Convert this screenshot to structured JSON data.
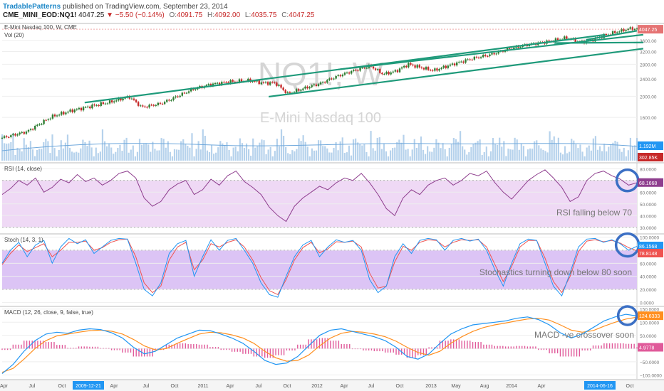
{
  "header": {
    "brand": "TradablePatterns",
    "published": "published on TradingView.com, September 23, 2014",
    "symbol": "CME_MINI_EOD:NQ1!",
    "last": "4047.25",
    "change": "▼ −5.50 (−0.14%)",
    "o_label": "O:",
    "o": "4091.75",
    "h_label": "H:",
    "h": "4092.00",
    "l_label": "L:",
    "l": "4035.75",
    "c_label": "C:",
    "c": "4047.25"
  },
  "colors": {
    "price_up": "#2e7d32",
    "price_down": "#c62828",
    "trendline": "#1e9a7a",
    "rsi_line": "#8e3e8e",
    "rsi_band": "#efd9f5",
    "stoch_k": "#2196f3",
    "stoch_d": "#ef5350",
    "stoch_band": "#dcc4f5",
    "macd_line": "#2196f3",
    "signal_line": "#ff8f1f",
    "hist": "#e05a9a",
    "circle": "#3b6fc4",
    "volume": "#9dc3e6"
  },
  "chart_data": [
    {
      "type": "candlestick",
      "title": "E-Mini Nasdaq 100, W, CME",
      "watermark_symbol": "NQ1!, W",
      "watermark_name": "E-Mini Nasdaq 100",
      "y_ticks": [
        "3600.00",
        "3200.00",
        "2800.00",
        "2400.00",
        "2000.00",
        "1600.00"
      ],
      "y_tick_values": [
        3600,
        3200,
        2800,
        2400,
        2000,
        1600
      ],
      "ylim": [
        1000,
        4300
      ],
      "last_price_label": "4047.25",
      "x_ticks": [
        "Apr",
        "Jul",
        "Oct",
        "2009-12-21",
        "Apr",
        "Jul",
        "Oct",
        "2011",
        "Apr",
        "Jul",
        "Oct",
        "2012",
        "Apr",
        "Jul",
        "Oct",
        "2013",
        "May",
        "Aug",
        "2014",
        "Apr",
        "2014-06-16",
        "Oct"
      ],
      "x_range": [
        "2009-04",
        "2014-10"
      ],
      "close_path": [
        {
          "x": 0.0,
          "y": 1290
        },
        {
          "x": 0.04,
          "y": 1380
        },
        {
          "x": 0.08,
          "y": 1620
        },
        {
          "x": 0.11,
          "y": 1720
        },
        {
          "x": 0.14,
          "y": 1800
        },
        {
          "x": 0.17,
          "y": 1880
        },
        {
          "x": 0.2,
          "y": 1990
        },
        {
          "x": 0.22,
          "y": 1780
        },
        {
          "x": 0.25,
          "y": 1850
        },
        {
          "x": 0.27,
          "y": 1960
        },
        {
          "x": 0.3,
          "y": 2150
        },
        {
          "x": 0.33,
          "y": 2270
        },
        {
          "x": 0.36,
          "y": 2330
        },
        {
          "x": 0.39,
          "y": 2360
        },
        {
          "x": 0.41,
          "y": 2300
        },
        {
          "x": 0.43,
          "y": 2300
        },
        {
          "x": 0.45,
          "y": 2050
        },
        {
          "x": 0.47,
          "y": 2150
        },
        {
          "x": 0.5,
          "y": 2280
        },
        {
          "x": 0.53,
          "y": 2480
        },
        {
          "x": 0.56,
          "y": 2650
        },
        {
          "x": 0.58,
          "y": 2750
        },
        {
          "x": 0.6,
          "y": 2520
        },
        {
          "x": 0.62,
          "y": 2600
        },
        {
          "x": 0.64,
          "y": 2800
        },
        {
          "x": 0.66,
          "y": 2700
        },
        {
          "x": 0.68,
          "y": 2620
        },
        {
          "x": 0.71,
          "y": 2800
        },
        {
          "x": 0.74,
          "y": 2970
        },
        {
          "x": 0.77,
          "y": 3100
        },
        {
          "x": 0.8,
          "y": 3300
        },
        {
          "x": 0.83,
          "y": 3450
        },
        {
          "x": 0.86,
          "y": 3550
        },
        {
          "x": 0.89,
          "y": 3700
        },
        {
          "x": 0.91,
          "y": 3520
        },
        {
          "x": 0.93,
          "y": 3620
        },
        {
          "x": 0.95,
          "y": 3800
        },
        {
          "x": 0.97,
          "y": 3950
        },
        {
          "x": 0.99,
          "y": 4080
        },
        {
          "x": 1.0,
          "y": 4047
        }
      ],
      "trendlines": [
        {
          "name": "channel-upper",
          "from": {
            "x": 0.13,
            "y": 1870
          },
          "to": {
            "x": 0.95,
            "y": 3820
          }
        },
        {
          "name": "channel-lower",
          "from": {
            "x": 0.42,
            "y": 1990
          },
          "to": {
            "x": 1.01,
            "y": 3300
          }
        },
        {
          "name": "support-long",
          "from": {
            "x": 0.53,
            "y": 2650
          },
          "to": {
            "x": 1.01,
            "y": 3820
          }
        },
        {
          "name": "resistance-flat",
          "from": {
            "x": 0.87,
            "y": 3500
          },
          "to": {
            "x": 1.01,
            "y": 3520
          }
        },
        {
          "name": "short-uptrend",
          "from": {
            "x": 0.92,
            "y": 3620
          },
          "to": {
            "x": 1.0,
            "y": 3980
          }
        }
      ]
    },
    {
      "type": "bar",
      "title": "Vol (20)",
      "last_label": "1.192M",
      "last_label2": "302.85K"
    },
    {
      "type": "line",
      "title": "RSI (14, close)",
      "y_ticks": [
        "80.0000",
        "70.0000",
        "60.0000",
        "50.0000",
        "40.0000",
        "30.0000"
      ],
      "y_tick_values": [
        80,
        70,
        60,
        50,
        40,
        30
      ],
      "ylim": [
        25,
        85
      ],
      "band": [
        30,
        70
      ],
      "last_label": "68.1668",
      "annotation": "RSI falling below 70",
      "values": [
        58,
        63,
        70,
        66,
        72,
        60,
        64,
        71,
        68,
        75,
        69,
        72,
        66,
        70,
        76,
        78,
        72,
        55,
        48,
        52,
        62,
        67,
        70,
        58,
        62,
        71,
        66,
        74,
        78,
        69,
        64,
        58,
        47,
        40,
        35,
        48,
        55,
        60,
        65,
        62,
        68,
        72,
        70,
        76,
        68,
        58,
        46,
        40,
        55,
        62,
        58,
        66,
        70,
        72,
        66,
        70,
        76,
        74,
        78,
        68,
        60,
        54,
        62,
        70,
        75,
        79,
        72,
        64,
        52,
        56,
        70,
        76,
        78,
        74,
        71,
        66,
        68
      ],
      "circle_at": {
        "x": 0.985,
        "y": 70
      }
    },
    {
      "type": "line",
      "title": "Stoch (14, 3, 1)",
      "y_ticks": [
        "100.0000",
        "80.0000",
        "60.0000",
        "40.0000",
        "20.0000",
        "0.0000"
      ],
      "y_tick_values": [
        100,
        80,
        60,
        40,
        20,
        0
      ],
      "ylim": [
        -5,
        105
      ],
      "band": [
        20,
        80
      ],
      "last_label": "86.1568",
      "last_label2": "78.8148",
      "annotation": "Stochastics turning down below 80 soon",
      "k": [
        60,
        80,
        92,
        70,
        88,
        95,
        60,
        85,
        98,
        90,
        96,
        75,
        85,
        95,
        98,
        97,
        60,
        20,
        10,
        30,
        75,
        90,
        95,
        40,
        70,
        96,
        80,
        95,
        98,
        80,
        60,
        30,
        12,
        8,
        40,
        70,
        88,
        95,
        70,
        85,
        96,
        92,
        95,
        80,
        35,
        15,
        25,
        70,
        90,
        75,
        95,
        98,
        96,
        80,
        95,
        98,
        94,
        97,
        80,
        50,
        25,
        60,
        90,
        97,
        95,
        60,
        25,
        10,
        45,
        85,
        97,
        98,
        92,
        96,
        90,
        80,
        86
      ],
      "d": [
        58,
        75,
        88,
        78,
        84,
        90,
        70,
        80,
        92,
        92,
        94,
        80,
        84,
        92,
        96,
        97,
        70,
        30,
        15,
        25,
        65,
        85,
        92,
        50,
        65,
        90,
        85,
        92,
        96,
        85,
        65,
        38,
        18,
        12,
        35,
        65,
        84,
        92,
        76,
        82,
        93,
        92,
        94,
        85,
        45,
        22,
        25,
        62,
        86,
        80,
        92,
        96,
        95,
        85,
        92,
        96,
        95,
        96,
        85,
        58,
        32,
        55,
        85,
        95,
        95,
        68,
        32,
        15,
        40,
        78,
        94,
        96,
        93,
        95,
        91,
        84,
        79
      ]
    },
    {
      "type": "line",
      "title": "MACD (12, 26, close, 9, false, true)",
      "y_ticks": [
        "150.0000",
        "100.0000",
        "50.0000",
        "0.0000",
        "−50.0000",
        "−100.0000"
      ],
      "y_tick_values": [
        150,
        100,
        50,
        0,
        -50,
        -100
      ],
      "ylim": [
        -115,
        160
      ],
      "last_label": "124.6333",
      "last_label2": "4.9778",
      "annotation": "MACD -ve crossover soon",
      "macd": [
        -95,
        -60,
        -10,
        30,
        55,
        62,
        58,
        70,
        75,
        72,
        60,
        40,
        5,
        -20,
        -10,
        15,
        40,
        55,
        70,
        68,
        55,
        40,
        20,
        -10,
        -45,
        -60,
        -55,
        -30,
        10,
        50,
        70,
        75,
        65,
        55,
        45,
        30,
        5,
        -30,
        -40,
        -20,
        20,
        55,
        75,
        90,
        95,
        100,
        105,
        115,
        120,
        110,
        90,
        60,
        40,
        55,
        80,
        105,
        120,
        130,
        124
      ],
      "signal": [
        -90,
        -75,
        -40,
        0,
        30,
        48,
        55,
        62,
        68,
        70,
        66,
        55,
        35,
        10,
        -5,
        0,
        20,
        38,
        55,
        62,
        60,
        52,
        40,
        20,
        -10,
        -35,
        -48,
        -45,
        -25,
        10,
        40,
        58,
        65,
        62,
        55,
        45,
        28,
        5,
        -15,
        -25,
        -10,
        20,
        45,
        65,
        80,
        90,
        97,
        105,
        112,
        115,
        108,
        90,
        70,
        62,
        68,
        85,
        100,
        112,
        119
      ],
      "hist": [
        -5,
        15,
        30,
        30,
        25,
        14,
        3,
        8,
        7,
        2,
        -6,
        -15,
        -30,
        -30,
        -5,
        15,
        20,
        17,
        15,
        6,
        -5,
        -12,
        -20,
        -30,
        -35,
        -25,
        -7,
        15,
        35,
        40,
        30,
        17,
        0,
        -7,
        -10,
        -15,
        -23,
        -35,
        -25,
        5,
        30,
        35,
        30,
        25,
        15,
        10,
        8,
        10,
        8,
        -5,
        -18,
        -30,
        -30,
        -7,
        12,
        20,
        20,
        18,
        5
      ]
    }
  ]
}
